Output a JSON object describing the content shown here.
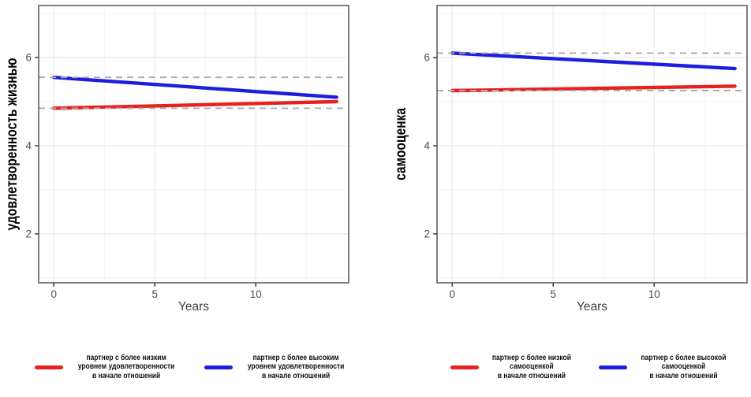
{
  "accent_colors": {
    "red_line": "#e8211e",
    "blue_line": "#1d1de0",
    "reference_dashed": "#ababab",
    "panel_border": "#555555",
    "tick_mark": "#333333",
    "tick_label": "#4d4d4d",
    "grid_major": "#eae7f0",
    "grid_minor": "#f4f2f8"
  },
  "chart_data": [
    {
      "type": "line",
      "title": "",
      "xlabel": "Years",
      "ylabel": "удовлетворенность жизнью",
      "xlim": [
        -0.75,
        14.6
      ],
      "ylim": [
        0.89,
        7.18
      ],
      "x_ticks": [
        0,
        5,
        10
      ],
      "y_ticks": [
        2,
        4,
        6
      ],
      "grid": true,
      "legend_position": "bottom",
      "series": [
        {
          "name": "партнер с более низким уровнем удовлетворенности в начале отношений",
          "color": "#e8211e",
          "x": [
            0,
            14
          ],
          "values": [
            4.85,
            5.0
          ]
        },
        {
          "name": "партнер с более высоким уровнем удовлетворенности в начале отношений",
          "color": "#1d1de0",
          "x": [
            0,
            14
          ],
          "values": [
            5.55,
            5.1
          ]
        }
      ],
      "reference_lines": [
        {
          "y": 5.55,
          "style": "dashed",
          "color": "#ababab"
        },
        {
          "y": 4.85,
          "style": "dashed",
          "color": "#ababab"
        }
      ],
      "legend": [
        {
          "color": "#e8211e",
          "label_lines": [
            "партнер с более низким",
            "уровнем удовлетворенности",
            "в начале отношений"
          ]
        },
        {
          "color": "#1d1de0",
          "label_lines": [
            "партнер с более высоким",
            "уровнем удовлетворенности",
            "в начале отношений"
          ]
        }
      ]
    },
    {
      "type": "line",
      "title": "",
      "xlabel": "Years",
      "ylabel": "самооценка",
      "xlim": [
        -0.75,
        14.6
      ],
      "ylim": [
        0.89,
        7.18
      ],
      "x_ticks": [
        0,
        5,
        10
      ],
      "y_ticks": [
        2,
        4,
        6
      ],
      "grid": true,
      "legend_position": "bottom",
      "series": [
        {
          "name": "партнер с более низкой самооценкой в начале отношений",
          "color": "#e8211e",
          "x": [
            0,
            14
          ],
          "values": [
            5.25,
            5.35
          ]
        },
        {
          "name": "партнер с более высокой самооценкой в начале отношений",
          "color": "#1d1de0",
          "x": [
            0,
            14
          ],
          "values": [
            6.1,
            5.75
          ]
        }
      ],
      "reference_lines": [
        {
          "y": 6.1,
          "style": "dashed",
          "color": "#ababab"
        },
        {
          "y": 5.25,
          "style": "dashed",
          "color": "#ababab"
        }
      ],
      "legend": [
        {
          "color": "#e8211e",
          "label_lines": [
            "партнер с более низкой",
            "самооценкой",
            "в начале отношений"
          ]
        },
        {
          "color": "#1d1de0",
          "label_lines": [
            "партнер с более высокой",
            "самооценкой",
            "в начале отношений"
          ]
        }
      ]
    }
  ]
}
